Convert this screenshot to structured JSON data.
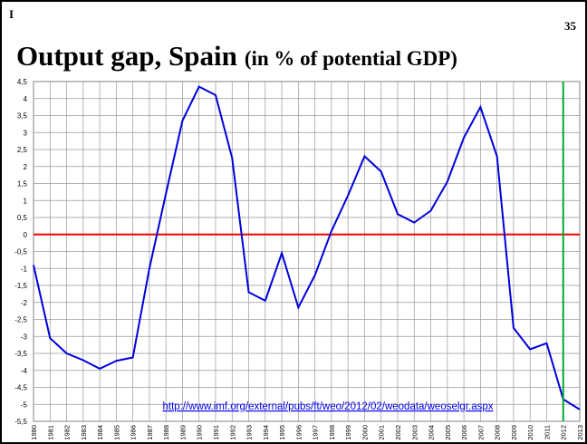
{
  "chart_data": {
    "type": "line",
    "corner_left": "I",
    "corner_right": "35",
    "title": "Output gap, Spain",
    "title_note": "(in % of potential GDP)",
    "annotation": "http://www.imf.org/external/pubs/ft/weo/2012/02/weodata/weoselgr.aspx",
    "x": [
      1980,
      1981,
      1982,
      1983,
      1984,
      1985,
      1986,
      1987,
      1988,
      1989,
      1990,
      1991,
      1992,
      1993,
      1994,
      1995,
      1996,
      1997,
      1998,
      1999,
      2000,
      2001,
      2002,
      2003,
      2004,
      2005,
      2006,
      2007,
      2008,
      2009,
      2010,
      2011,
      2012,
      2013
    ],
    "series": [
      {
        "name": "Output gap",
        "color": "#0000dd",
        "values": [
          -0.9,
          -3.05,
          -3.5,
          -3.7,
          -3.95,
          -3.72,
          -3.62,
          -1.0,
          1.2,
          3.35,
          4.35,
          4.1,
          2.25,
          -1.7,
          -1.95,
          -0.55,
          -2.15,
          -1.2,
          0.1,
          1.15,
          2.3,
          1.85,
          0.6,
          0.35,
          0.7,
          1.55,
          2.85,
          3.75,
          2.3,
          -2.75,
          -3.38,
          -3.2,
          -4.85,
          -5.15
        ]
      }
    ],
    "xlim": [
      1980,
      2013
    ],
    "xticks": [
      1980,
      1981,
      1982,
      1983,
      1984,
      1985,
      1986,
      1987,
      1988,
      1989,
      1990,
      1991,
      1992,
      1993,
      1994,
      1995,
      1996,
      1997,
      1998,
      1999,
      2000,
      2001,
      2002,
      2003,
      2004,
      2005,
      2006,
      2007,
      2008,
      2009,
      2010,
      2011,
      2012,
      2013
    ],
    "ylim": [
      -5.5,
      4.5
    ],
    "yticks": [
      {
        "value": 4.5,
        "label": "4,5"
      },
      4,
      {
        "value": 3.5,
        "label": "3,5"
      },
      3,
      {
        "value": 2.5,
        "label": "2,5"
      },
      2,
      {
        "value": 1.5,
        "label": "1,5"
      },
      1,
      {
        "value": 0.5,
        "label": "0,5"
      },
      0,
      {
        "value": -0.5,
        "label": "-0,5"
      },
      -1,
      {
        "value": -1.5,
        "label": "-1,5"
      },
      -2,
      {
        "value": -2.5,
        "label": "-2,5"
      },
      -3,
      {
        "value": -3.5,
        "label": "-3,5"
      },
      -4,
      {
        "value": -4.5,
        "label": "-4,5"
      },
      -5,
      {
        "value": -5.5,
        "label": "-5,5"
      }
    ],
    "grid": true,
    "hline": {
      "value": 0,
      "color": "#ee0000"
    },
    "vline": {
      "value": 2012,
      "color": "#00aa33"
    }
  }
}
